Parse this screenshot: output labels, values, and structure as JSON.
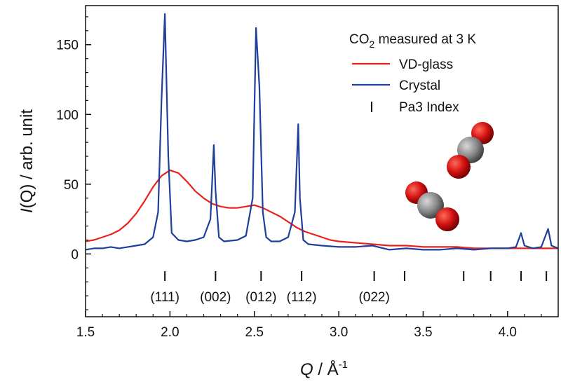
{
  "chart_data": {
    "type": "line",
    "xlabel": {
      "var": "Q",
      "sep": " / Å",
      "sup": "-1"
    },
    "ylabel": {
      "var": "I",
      "rest": "(Q) / arb. unit"
    },
    "xlim": [
      1.5,
      4.3
    ],
    "ylim": [
      -45,
      178
    ],
    "xticks": [
      1.5,
      2.0,
      2.5,
      3.0,
      3.5,
      4.0
    ],
    "xtick_labels": [
      "1.5",
      "2.0",
      "2.5",
      "3.0",
      "3.5",
      "4.0"
    ],
    "yticks": [
      0,
      50,
      100,
      150
    ],
    "ytick_labels": [
      "0",
      "50",
      "100",
      "150"
    ],
    "grid": false,
    "legend": {
      "placement": "top-right",
      "title": {
        "main": "CO",
        "sub": "2",
        "rest": " measured at 3 K"
      },
      "entries": [
        {
          "label": "VD-glass",
          "color": "#e8221c",
          "marker": "line"
        },
        {
          "label": "Crystal",
          "color": "#1f3f9a",
          "marker": "line"
        },
        {
          "label": "Pa3 Index",
          "color": "#111111",
          "marker": "bar"
        }
      ]
    },
    "series": [
      {
        "name": "VD-glass",
        "color": "#e8221c",
        "x": [
          1.5,
          1.55,
          1.6,
          1.65,
          1.7,
          1.75,
          1.8,
          1.85,
          1.9,
          1.95,
          2.0,
          2.05,
          2.1,
          2.15,
          2.2,
          2.25,
          2.3,
          2.35,
          2.4,
          2.45,
          2.5,
          2.55,
          2.6,
          2.65,
          2.7,
          2.75,
          2.8,
          2.85,
          2.9,
          2.95,
          3.0,
          3.1,
          3.2,
          3.3,
          3.4,
          3.5,
          3.6,
          3.7,
          3.8,
          3.9,
          4.0,
          4.1,
          4.2,
          4.3
        ],
        "values": [
          9,
          10,
          12,
          14,
          17,
          22,
          29,
          38,
          48,
          56,
          60,
          58,
          52,
          45,
          40,
          36,
          34,
          33,
          33,
          34,
          35,
          33,
          30,
          27,
          23,
          19,
          16,
          14,
          12,
          10,
          9,
          8,
          7,
          6,
          6,
          5,
          5,
          5,
          4,
          4,
          4,
          4,
          4,
          4
        ]
      },
      {
        "name": "Crystal",
        "color": "#1f3f9a",
        "x": [
          1.5,
          1.55,
          1.6,
          1.65,
          1.7,
          1.75,
          1.8,
          1.85,
          1.9,
          1.93,
          1.95,
          1.97,
          1.99,
          2.01,
          2.05,
          2.1,
          2.15,
          2.2,
          2.24,
          2.26,
          2.27,
          2.29,
          2.32,
          2.4,
          2.45,
          2.49,
          2.51,
          2.53,
          2.55,
          2.57,
          2.6,
          2.65,
          2.7,
          2.74,
          2.76,
          2.77,
          2.79,
          2.82,
          2.9,
          3.0,
          3.1,
          3.2,
          3.3,
          3.4,
          3.5,
          3.6,
          3.7,
          3.8,
          3.9,
          4.0,
          4.05,
          4.08,
          4.1,
          4.15,
          4.2,
          4.24,
          4.26,
          4.3
        ],
        "values": [
          3,
          4,
          4,
          5,
          4,
          5,
          6,
          7,
          12,
          30,
          110,
          172,
          70,
          15,
          10,
          9,
          10,
          12,
          25,
          78,
          45,
          12,
          9,
          10,
          13,
          40,
          162,
          120,
          30,
          12,
          9,
          9,
          12,
          30,
          93,
          40,
          10,
          7,
          6,
          5,
          5,
          6,
          3,
          4,
          3,
          3,
          4,
          3,
          4,
          4,
          5,
          15,
          6,
          4,
          5,
          18,
          6,
          4
        ]
      }
    ],
    "pa3_index": {
      "positions": [
        1.97,
        2.27,
        2.54,
        2.78,
        3.21,
        3.39,
        3.74,
        3.9,
        4.08,
        4.23
      ],
      "labels": [
        {
          "x": 1.97,
          "text": "(111)"
        },
        {
          "x": 2.27,
          "text": "(002)"
        },
        {
          "x": 2.54,
          "text": "(012)"
        },
        {
          "x": 2.78,
          "text": "(112)"
        },
        {
          "x": 3.21,
          "text": "(022)"
        }
      ]
    },
    "molecule_colors": {
      "oxygen": "#d01010",
      "carbon": "#8a8a8a"
    }
  }
}
